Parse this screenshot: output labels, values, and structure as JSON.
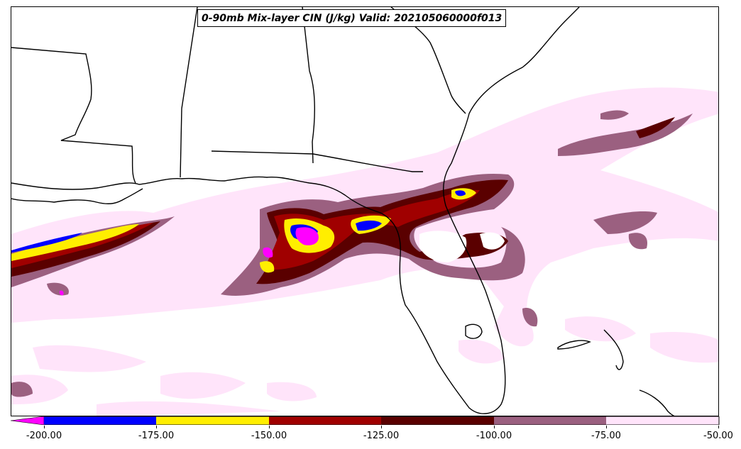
{
  "title": "0-90mb Mix-layer CIN (J/kg) Valid: 202105060000f013",
  "colorbar": {
    "ticks": [
      "-200.00",
      "-175.00",
      "-150.00",
      "-125.00",
      "-100.00",
      "-75.00",
      "-50.00"
    ],
    "bins": [
      {
        "range": "< -200",
        "color": "#ff00ff"
      },
      {
        "range": "-200 to -175",
        "color": "#0000ff"
      },
      {
        "range": "-175 to -150",
        "color": "#ffee00"
      },
      {
        "range": "-150 to -125",
        "color": "#a00000"
      },
      {
        "range": "-125 to -100",
        "color": "#5a0000"
      },
      {
        "range": "-100 to -75",
        "color": "#9b6080"
      },
      {
        "range": "-75 to -50",
        "color": "#ffe4fa"
      }
    ]
  },
  "map": {
    "region": "US Gulf Coast / Southeast",
    "boundaries_color": "#000000",
    "background_color": "#ffffff"
  }
}
